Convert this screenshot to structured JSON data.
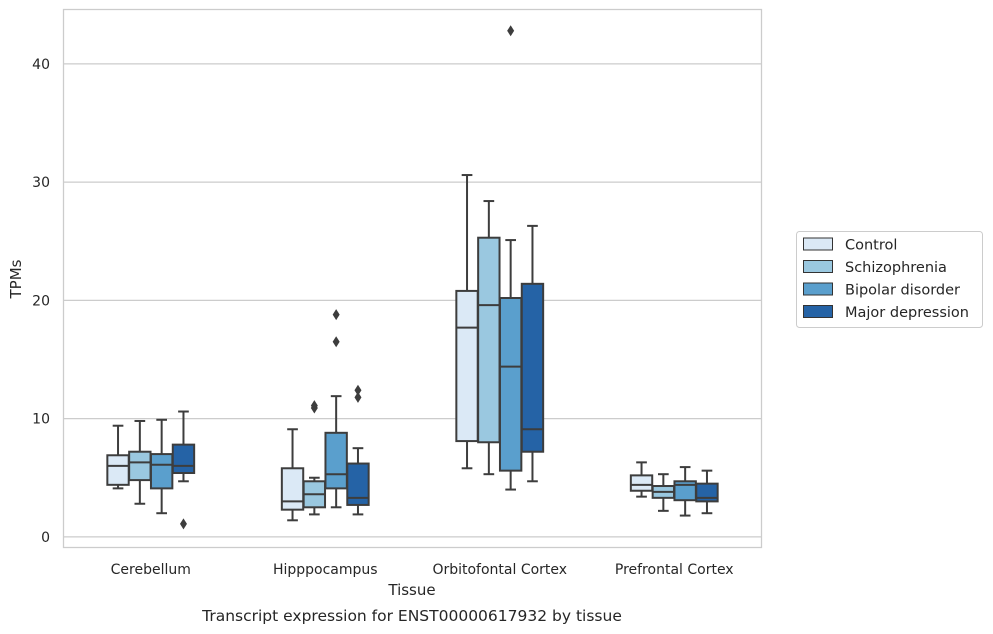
{
  "caption": "Transcript expression for ENST00000617932 by tissue",
  "chart_data": {
    "type": "box",
    "xlabel": "Tissue",
    "ylabel": "TPMs",
    "ylim": [
      -0.9,
      44.6
    ],
    "yticks": [
      0,
      10,
      20,
      30,
      40
    ],
    "grid": "horizontal",
    "legend_position": "right",
    "categories": [
      "Cerebellum",
      "Hipppocampus",
      "Orbitofontal Cortex",
      "Prefrontal Cortex"
    ],
    "series": [
      {
        "name": "Control",
        "color": "#dbe9f6",
        "boxes": [
          {
            "whislo": 4.1,
            "q1": 4.4,
            "med": 6.0,
            "q3": 6.9,
            "whishi": 9.4,
            "fliers": []
          },
          {
            "whislo": 1.4,
            "q1": 2.3,
            "med": 3.0,
            "q3": 5.8,
            "whishi": 9.1,
            "fliers": []
          },
          {
            "whislo": 5.8,
            "q1": 8.1,
            "med": 17.7,
            "q3": 20.8,
            "whishi": 30.6,
            "fliers": []
          },
          {
            "whislo": 3.4,
            "q1": 3.9,
            "med": 4.4,
            "q3": 5.2,
            "whishi": 6.3,
            "fliers": []
          }
        ]
      },
      {
        "name": "Schizophrenia",
        "color": "#9ac8e0",
        "boxes": [
          {
            "whislo": 2.8,
            "q1": 4.8,
            "med": 6.3,
            "q3": 7.2,
            "whishi": 9.8,
            "fliers": []
          },
          {
            "whislo": 1.9,
            "q1": 2.5,
            "med": 3.6,
            "q3": 4.7,
            "whishi": 5.0,
            "fliers": [
              10.9,
              11.1
            ]
          },
          {
            "whislo": 5.3,
            "q1": 8.0,
            "med": 19.6,
            "q3": 25.3,
            "whishi": 28.4,
            "fliers": []
          },
          {
            "whislo": 2.2,
            "q1": 3.3,
            "med": 3.8,
            "q3": 4.3,
            "whishi": 5.3,
            "fliers": []
          }
        ]
      },
      {
        "name": "Bipolar disorder",
        "color": "#5a9fcd",
        "boxes": [
          {
            "whislo": 2.0,
            "q1": 4.1,
            "med": 6.1,
            "q3": 7.0,
            "whishi": 9.9,
            "fliers": []
          },
          {
            "whislo": 2.5,
            "q1": 4.1,
            "med": 5.3,
            "q3": 8.8,
            "whishi": 11.9,
            "fliers": [
              16.5,
              18.8
            ]
          },
          {
            "whislo": 4.0,
            "q1": 5.6,
            "med": 14.4,
            "q3": 20.2,
            "whishi": 25.1,
            "fliers": [
              42.8
            ]
          },
          {
            "whislo": 1.8,
            "q1": 3.1,
            "med": 4.4,
            "q3": 4.7,
            "whishi": 5.9,
            "fliers": []
          }
        ]
      },
      {
        "name": "Major depression",
        "color": "#2563a6",
        "boxes": [
          {
            "whislo": 4.7,
            "q1": 5.4,
            "med": 6.0,
            "q3": 7.8,
            "whishi": 10.6,
            "fliers": [
              1.1
            ]
          },
          {
            "whislo": 1.9,
            "q1": 2.7,
            "med": 3.3,
            "q3": 6.2,
            "whishi": 7.5,
            "fliers": [
              11.8,
              12.4
            ]
          },
          {
            "whislo": 4.7,
            "q1": 7.2,
            "med": 9.1,
            "q3": 21.4,
            "whishi": 26.3,
            "fliers": []
          },
          {
            "whislo": 2.0,
            "q1": 3.0,
            "med": 3.3,
            "q3": 4.5,
            "whishi": 5.6,
            "fliers": []
          }
        ]
      }
    ]
  }
}
